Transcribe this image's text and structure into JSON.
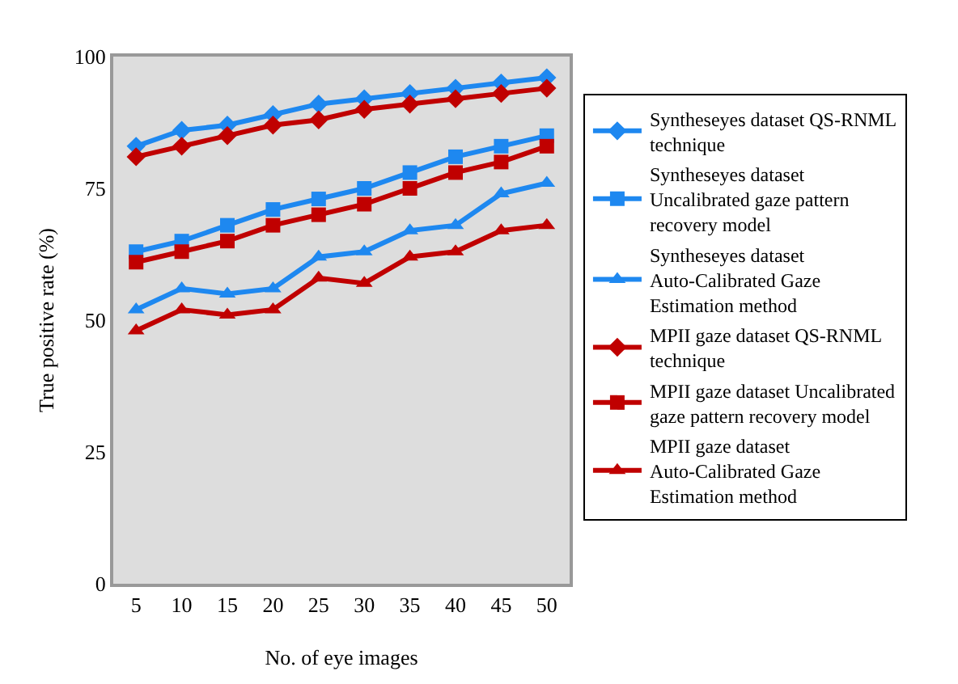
{
  "chart_data": {
    "type": "line",
    "xlabel": "No. of eye images",
    "ylabel": "True positive rate (%)",
    "categories": [
      "5",
      "10",
      "15",
      "20",
      "25",
      "30",
      "35",
      "40",
      "45",
      "50"
    ],
    "ylim": [
      0,
      100
    ],
    "yticks": [
      0,
      25,
      50,
      75,
      100
    ],
    "grid": false,
    "legend": "right",
    "line_style": "solid",
    "series": [
      {
        "name": "Syntheseyes dataset QS-RNML technique",
        "color": "#1e88f0",
        "marker": "diamond",
        "values": [
          83,
          86,
          87,
          89,
          91,
          92,
          93,
          94,
          95,
          96
        ]
      },
      {
        "name": "Syntheseyes dataset Uncalibrated gaze pattern recovery model",
        "color": "#1e88f0",
        "marker": "square",
        "values": [
          63,
          65,
          68,
          71,
          73,
          75,
          78,
          81,
          83,
          85
        ]
      },
      {
        "name": "Syntheseyes dataset Auto-Calibrated Gaze Estimation method",
        "color": "#1e88f0",
        "marker": "triangle",
        "values": [
          52,
          56,
          55,
          56,
          62,
          63,
          67,
          68,
          74,
          76
        ]
      },
      {
        "name": "MPII gaze dataset QS-RNML technique",
        "color": "#c00000",
        "marker": "diamond",
        "values": [
          81,
          83,
          85,
          87,
          88,
          90,
          91,
          92,
          93,
          94
        ]
      },
      {
        "name": "MPII gaze dataset Uncalibrated gaze pattern recovery model",
        "color": "#c00000",
        "marker": "square",
        "values": [
          61,
          63,
          65,
          68,
          70,
          72,
          75,
          78,
          80,
          83
        ]
      },
      {
        "name": "MPII gaze dataset Auto-Calibrated Gaze Estimation method",
        "color": "#c00000",
        "marker": "triangle",
        "values": [
          48,
          52,
          51,
          52,
          58,
          57,
          62,
          63,
          67,
          68
        ]
      }
    ]
  }
}
